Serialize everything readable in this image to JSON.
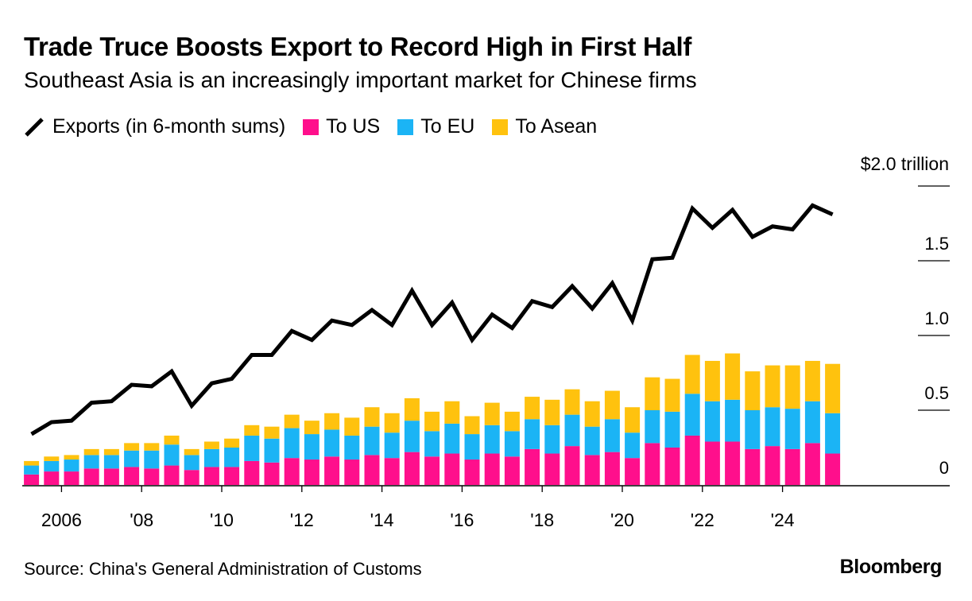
{
  "chart_data": {
    "type": "bar",
    "title": "Trade Truce Boosts Export to Record High in First Half",
    "subtitle": "Southeast Asia is an increasingly important market for Chinese firms",
    "legend": [
      {
        "label": "Exports (in 6-month sums)",
        "color": "#000000",
        "kind": "line"
      },
      {
        "label": "To US",
        "color": "#ff0f8c",
        "kind": "bar"
      },
      {
        "label": "To EU",
        "color": "#1bb4f5",
        "kind": "bar"
      },
      {
        "label": "To Asean",
        "color": "#ffc20e",
        "kind": "bar"
      }
    ],
    "y_unit_label": "$2.0 trillion",
    "y_ticks": [
      {
        "value": 0,
        "label": "0"
      },
      {
        "value": 0.5,
        "label": "0.5"
      },
      {
        "value": 1.0,
        "label": "1.0"
      },
      {
        "value": 1.5,
        "label": "1.5"
      },
      {
        "value": 2.0,
        "label": ""
      }
    ],
    "ylim": [
      0,
      2.0
    ],
    "x_ticks": [
      {
        "index": 2,
        "label": "2006"
      },
      {
        "index": 6,
        "label": "'08"
      },
      {
        "index": 10,
        "label": "'10"
      },
      {
        "index": 14,
        "label": "'12"
      },
      {
        "index": 18,
        "label": "'14"
      },
      {
        "index": 22,
        "label": "'16"
      },
      {
        "index": 26,
        "label": "'18"
      },
      {
        "index": 30,
        "label": "'20"
      },
      {
        "index": 34,
        "label": "'22"
      },
      {
        "index": 38,
        "label": "'24"
      }
    ],
    "periods": [
      "2005 H1",
      "2005 H2",
      "2006 H1",
      "2006 H2",
      "2007 H1",
      "2007 H2",
      "2008 H1",
      "2008 H2",
      "2009 H1",
      "2009 H2",
      "2010 H1",
      "2010 H2",
      "2011 H1",
      "2011 H2",
      "2012 H1",
      "2012 H2",
      "2013 H1",
      "2013 H2",
      "2014 H1",
      "2014 H2",
      "2015 H1",
      "2015 H2",
      "2016 H1",
      "2016 H2",
      "2017 H1",
      "2017 H2",
      "2018 H1",
      "2018 H2",
      "2019 H1",
      "2019 H2",
      "2020 H1",
      "2020 H2",
      "2021 H1",
      "2021 H2",
      "2022 H1",
      "2022 H2",
      "2023 H1",
      "2023 H2",
      "2024 H1",
      "2024 H2",
      "2025 H1"
    ],
    "series": [
      {
        "name": "Exports (in 6-month sums)",
        "type": "line",
        "values": [
          0.34,
          0.42,
          0.43,
          0.55,
          0.56,
          0.67,
          0.66,
          0.76,
          0.53,
          0.68,
          0.71,
          0.87,
          0.87,
          1.03,
          0.97,
          1.1,
          1.07,
          1.17,
          1.07,
          1.3,
          1.07,
          1.22,
          0.97,
          1.14,
          1.05,
          1.23,
          1.19,
          1.33,
          1.18,
          1.35,
          1.1,
          1.51,
          1.52,
          1.85,
          1.72,
          1.84,
          1.66,
          1.73,
          1.71,
          1.87,
          1.81
        ]
      },
      {
        "name": "To US",
        "type": "bar",
        "values": [
          0.07,
          0.09,
          0.09,
          0.11,
          0.11,
          0.12,
          0.11,
          0.13,
          0.1,
          0.12,
          0.12,
          0.16,
          0.15,
          0.18,
          0.17,
          0.19,
          0.17,
          0.2,
          0.18,
          0.22,
          0.19,
          0.21,
          0.17,
          0.21,
          0.19,
          0.24,
          0.21,
          0.26,
          0.2,
          0.22,
          0.18,
          0.28,
          0.25,
          0.33,
          0.29,
          0.29,
          0.24,
          0.26,
          0.24,
          0.28,
          0.21
        ]
      },
      {
        "name": "To EU",
        "type": "bar",
        "values": [
          0.06,
          0.07,
          0.08,
          0.09,
          0.09,
          0.11,
          0.12,
          0.14,
          0.1,
          0.12,
          0.13,
          0.17,
          0.16,
          0.2,
          0.17,
          0.18,
          0.16,
          0.19,
          0.17,
          0.21,
          0.17,
          0.2,
          0.17,
          0.19,
          0.17,
          0.2,
          0.19,
          0.21,
          0.19,
          0.22,
          0.17,
          0.22,
          0.24,
          0.28,
          0.27,
          0.28,
          0.26,
          0.26,
          0.27,
          0.28,
          0.27
        ]
      },
      {
        "name": "To Asean",
        "type": "bar",
        "values": [
          0.03,
          0.03,
          0.03,
          0.04,
          0.04,
          0.05,
          0.05,
          0.06,
          0.04,
          0.05,
          0.06,
          0.07,
          0.08,
          0.09,
          0.09,
          0.11,
          0.12,
          0.13,
          0.13,
          0.15,
          0.13,
          0.15,
          0.12,
          0.15,
          0.13,
          0.15,
          0.17,
          0.17,
          0.17,
          0.19,
          0.17,
          0.22,
          0.22,
          0.26,
          0.27,
          0.31,
          0.26,
          0.28,
          0.29,
          0.27,
          0.33
        ]
      }
    ]
  },
  "footer": {
    "source": "Source: China's General Administration of Customs",
    "logo": "Bloomberg"
  }
}
